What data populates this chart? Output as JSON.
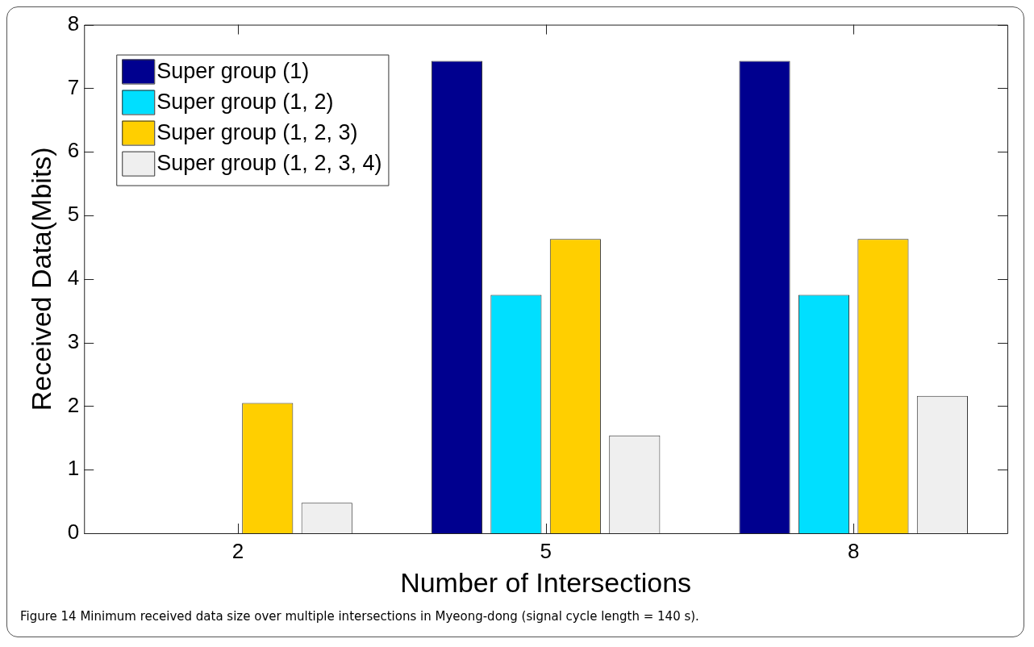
{
  "chart_data": {
    "type": "bar",
    "xlabel": "Number of Intersections",
    "ylabel": "Received Data(Mbits)",
    "categories": [
      "2",
      "5",
      "8"
    ],
    "series": [
      {
        "name": "Super group (1)",
        "color": "#00008f",
        "values": [
          0,
          7.43,
          7.43
        ]
      },
      {
        "name": "Super group (1, 2)",
        "color": "#00dfff",
        "values": [
          0,
          3.75,
          3.75
        ]
      },
      {
        "name": "Super group (1, 2, 3)",
        "color": "#ffcf00",
        "values": [
          2.05,
          4.63,
          4.63
        ]
      },
      {
        "name": "Super group (1, 2, 3, 4)",
        "color": "#efefef",
        "values": [
          0.48,
          1.54,
          2.16
        ]
      }
    ],
    "ylim": [
      0,
      8
    ],
    "yticks": [
      0,
      1,
      2,
      3,
      4,
      5,
      6,
      7,
      8
    ],
    "grid": false,
    "legend": "top left",
    "annotations": [
      "Figure 14 Minimum received data size over multiple intersections in Myeong-dong (signal cycle length = 140 s)."
    ]
  }
}
